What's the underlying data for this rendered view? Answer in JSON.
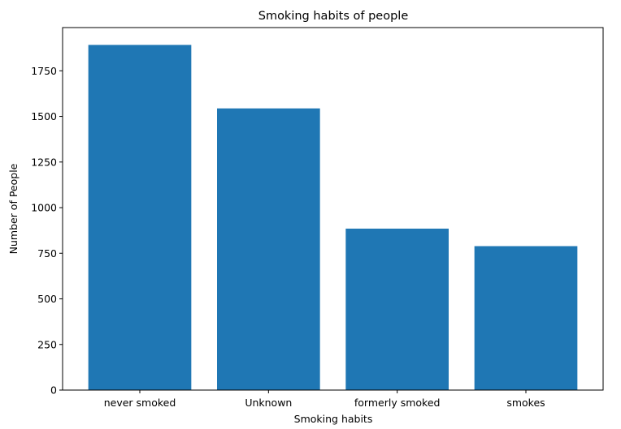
{
  "chart_data": {
    "type": "bar",
    "title": "Smoking habits of people",
    "xlabel": "Smoking habits",
    "ylabel": "Number of People",
    "categories": [
      "never smoked",
      "Unknown",
      "formerly smoked",
      "smokes"
    ],
    "values": [
      1892,
      1544,
      885,
      789
    ],
    "ylim": [
      0,
      1987
    ],
    "yticks": [
      0,
      250,
      500,
      750,
      1000,
      1250,
      1500,
      1750
    ],
    "ytick_labels": [
      "0",
      "250",
      "500",
      "750",
      "1000",
      "1250",
      "1500",
      "1750"
    ],
    "bar_color": "#1f77b4",
    "grid": false,
    "legend": "none"
  }
}
